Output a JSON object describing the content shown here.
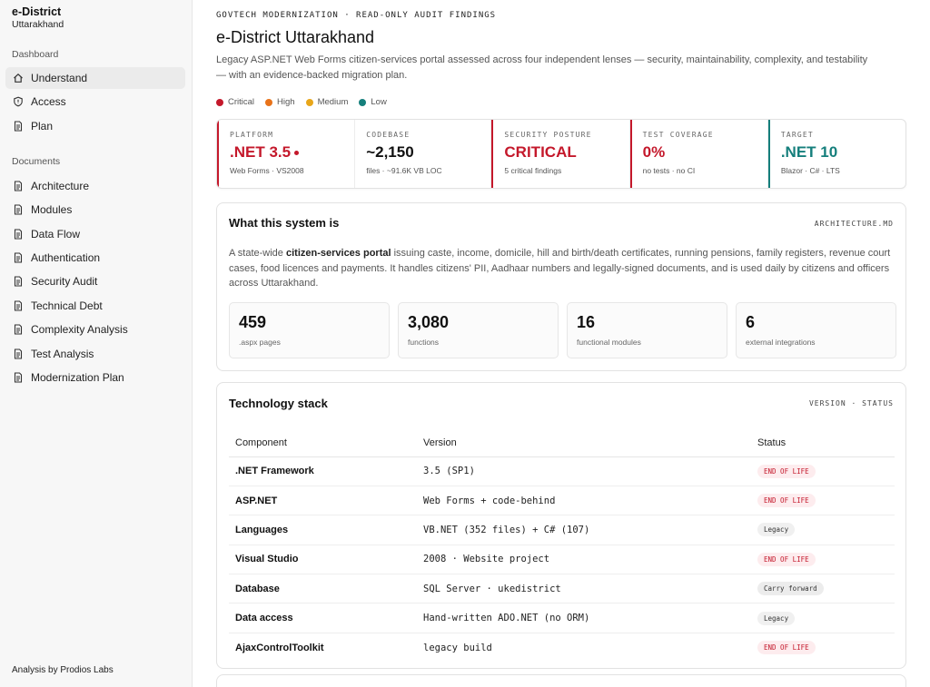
{
  "sidebar": {
    "brand_title": "e-District",
    "brand_sub": "Uttarakhand",
    "section1": "Dashboard",
    "dashboard_items": [
      {
        "label": "Understand",
        "icon": "home-icon"
      },
      {
        "label": "Access",
        "icon": "shield-icon"
      },
      {
        "label": "Plan",
        "icon": "document-icon"
      }
    ],
    "section2": "Documents",
    "document_items": [
      {
        "label": "Architecture"
      },
      {
        "label": "Modules"
      },
      {
        "label": "Data Flow"
      },
      {
        "label": "Authentication"
      },
      {
        "label": "Security Audit"
      },
      {
        "label": "Technical Debt"
      },
      {
        "label": "Complexity Analysis"
      },
      {
        "label": "Test Analysis"
      },
      {
        "label": "Modernization Plan"
      }
    ],
    "footer": "Analysis by Prodios Labs"
  },
  "header": {
    "eyebrow": "GOVTECH MODERNIZATION · READ-ONLY AUDIT FINDINGS",
    "title": "e-District Uttarakhand",
    "description": "Legacy ASP.NET Web Forms citizen-services portal assessed across four independent lenses — security, maintainability, complexity, and testability — with an evidence-backed migration plan."
  },
  "legend": [
    {
      "label": "Critical",
      "color": "#c4182b"
    },
    {
      "label": "High",
      "color": "#e8731a"
    },
    {
      "label": "Medium",
      "color": "#e8a61a"
    },
    {
      "label": "Low",
      "color": "#157f7c"
    }
  ],
  "stats": [
    {
      "label": "PLATFORM",
      "value": ".NET 3.5",
      "sub": "Web Forms · VS2008"
    },
    {
      "label": "CODEBASE",
      "value": "~2,150",
      "sub": "files · ~91.6K VB LOC"
    },
    {
      "label": "SECURITY POSTURE",
      "value": "CRITICAL",
      "sub": "5 critical findings"
    },
    {
      "label": "TEST COVERAGE",
      "value": "0%",
      "sub": "no tests · no CI"
    },
    {
      "label": "TARGET",
      "value": ".NET 10",
      "sub": "Blazor · C# · LTS"
    }
  ],
  "system": {
    "title": "What this system is",
    "tag": "ARCHITECTURE.MD",
    "body_pre": "A state-wide ",
    "body_bold": "citizen-services portal",
    "body_post": " issuing caste, income, domicile, hill and birth/death certificates, running pensions, family registers, revenue court cases, food licences and payments. It handles citizens' PII, Aadhaar numbers and legally-signed documents, and is used daily by citizens and officers across Uttarakhand.",
    "metrics": [
      {
        "value": "459",
        "label": ".aspx pages"
      },
      {
        "value": "3,080",
        "label": "functions"
      },
      {
        "value": "16",
        "label": "functional modules"
      },
      {
        "value": "6",
        "label": "external integrations"
      }
    ]
  },
  "stack": {
    "title": "Technology stack",
    "tag": "VERSION · STATUS",
    "headers": [
      "Component",
      "Version",
      "Status"
    ],
    "rows": [
      {
        "component": ".NET Framework",
        "version": "3.5 (SP1)",
        "status": "END OF LIFE",
        "kind": "eol"
      },
      {
        "component": "ASP.NET",
        "version": "Web Forms + code-behind",
        "status": "END OF LIFE",
        "kind": "eol"
      },
      {
        "component": "Languages",
        "version": "VB.NET (352 files) + C# (107)",
        "status": "Legacy",
        "kind": "legacy"
      },
      {
        "component": "Visual Studio",
        "version": "2008 · Website project",
        "status": "END OF LIFE",
        "kind": "eol"
      },
      {
        "component": "Database",
        "version": "SQL Server · ukedistrict",
        "status": "Carry forward",
        "kind": "carry"
      },
      {
        "component": "Data access",
        "version": "Hand-written ADO.NET (no ORM)",
        "status": "Legacy",
        "kind": "legacy"
      },
      {
        "component": "AjaxControlToolkit",
        "version": "legacy build",
        "status": "END OF LIFE",
        "kind": "eol"
      }
    ]
  }
}
